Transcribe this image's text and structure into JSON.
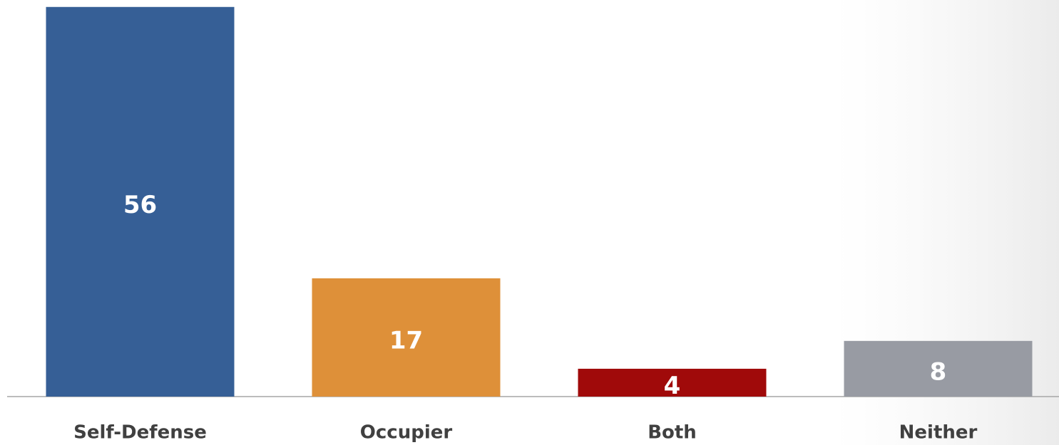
{
  "chart_data": {
    "type": "bar",
    "categories": [
      "Self-Defense",
      "Occupier",
      "Both",
      "Neither"
    ],
    "values": [
      56,
      17,
      4,
      8
    ],
    "colors": [
      "#365f96",
      "#de9039",
      "#a00a0a",
      "#989ba3"
    ],
    "ylim": [
      0,
      57
    ]
  }
}
